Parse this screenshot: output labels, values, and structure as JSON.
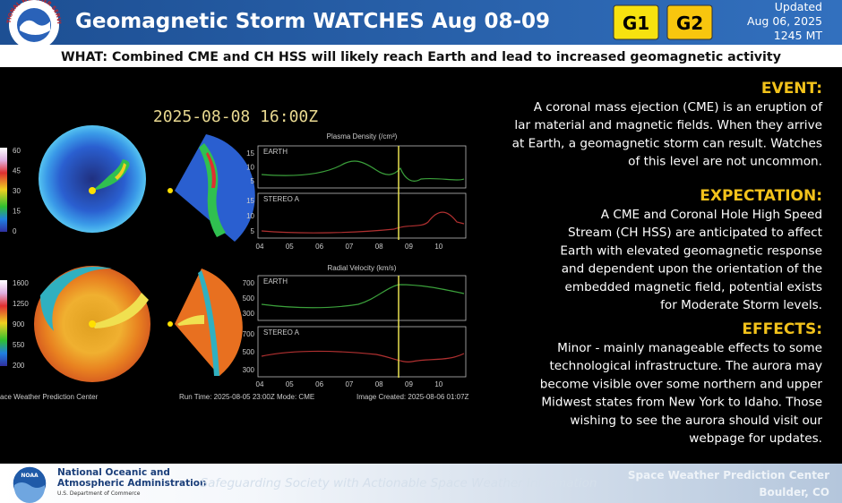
{
  "header": {
    "title": "Geomagnetic Storm WATCHES Aug 08-09",
    "badges": [
      "G1",
      "G2"
    ],
    "updated": [
      "Updated",
      "Aug 06, 2025",
      "1245 MT"
    ],
    "logo_text": "NATIONAL WEATHER SERVICE"
  },
  "what": "WHAT: Combined CME and CH HSS will likely reach Earth and lead to increased geomagnetic activity",
  "model": {
    "timestamp": "2025-08-08 16:00Z",
    "density_colorbar": [
      "60",
      "45",
      "30",
      "15",
      "0"
    ],
    "velocity_colorbar": [
      "1600",
      "1250",
      "900",
      "550",
      "200"
    ],
    "density_plot": {
      "title": "Plasma Density (/cm³)",
      "yticks": [
        "15",
        "10",
        "5"
      ],
      "panels": [
        "EARTH",
        "STEREO A"
      ]
    },
    "velocity_plot": {
      "title": "Radial Velocity (km/s)",
      "yticks": [
        "700",
        "500",
        "300"
      ],
      "panels": [
        "EARTH",
        "STEREO A"
      ]
    },
    "xticks": [
      "04",
      "05",
      "06",
      "07",
      "08",
      "09",
      "10"
    ],
    "credit": "ace Weather Prediction Center",
    "run_time": "Run Time: 2025-08-05 23:00Z   Mode: CME",
    "image_created": "Image Created: 2025-08-06 01:07Z"
  },
  "sections": [
    {
      "heading": "EVENT:",
      "lines": [
        "A coronal mass ejection (CME) is an eruption of",
        "lar material and magnetic fields. When they arrive",
        "at Earth, a geomagnetic storm can result. Watches",
        "of this level are not uncommon."
      ]
    },
    {
      "heading": "EXPECTATION:",
      "lines": [
        "A CME and Coronal Hole High Speed",
        "Stream (CH HSS) are anticipated to affect",
        "Earth with elevated geomagnetic response",
        "and dependent upon the orientation of the",
        "embedded magnetic field,  potential exists",
        "for Moderate Storm levels."
      ]
    },
    {
      "heading": "EFFECTS:",
      "lines": [
        "Minor - mainly manageable effects to some",
        "technological infrastructure. The aurora may",
        "become visible over some northern and upper",
        "Midwest states from New York to Idaho. Those",
        "wishing to see the aurora should visit our",
        "webpage for updates."
      ]
    }
  ],
  "footer": {
    "logo_text": "NOAA",
    "org": [
      "National Oceanic and",
      "Atmospheric Administration"
    ],
    "dept": "U.S. Department of Commerce",
    "tagline": "Safeguarding Society with Actionable Space Weather Information",
    "center": "Space Weather Prediction Center",
    "location": "Boulder, CO"
  }
}
